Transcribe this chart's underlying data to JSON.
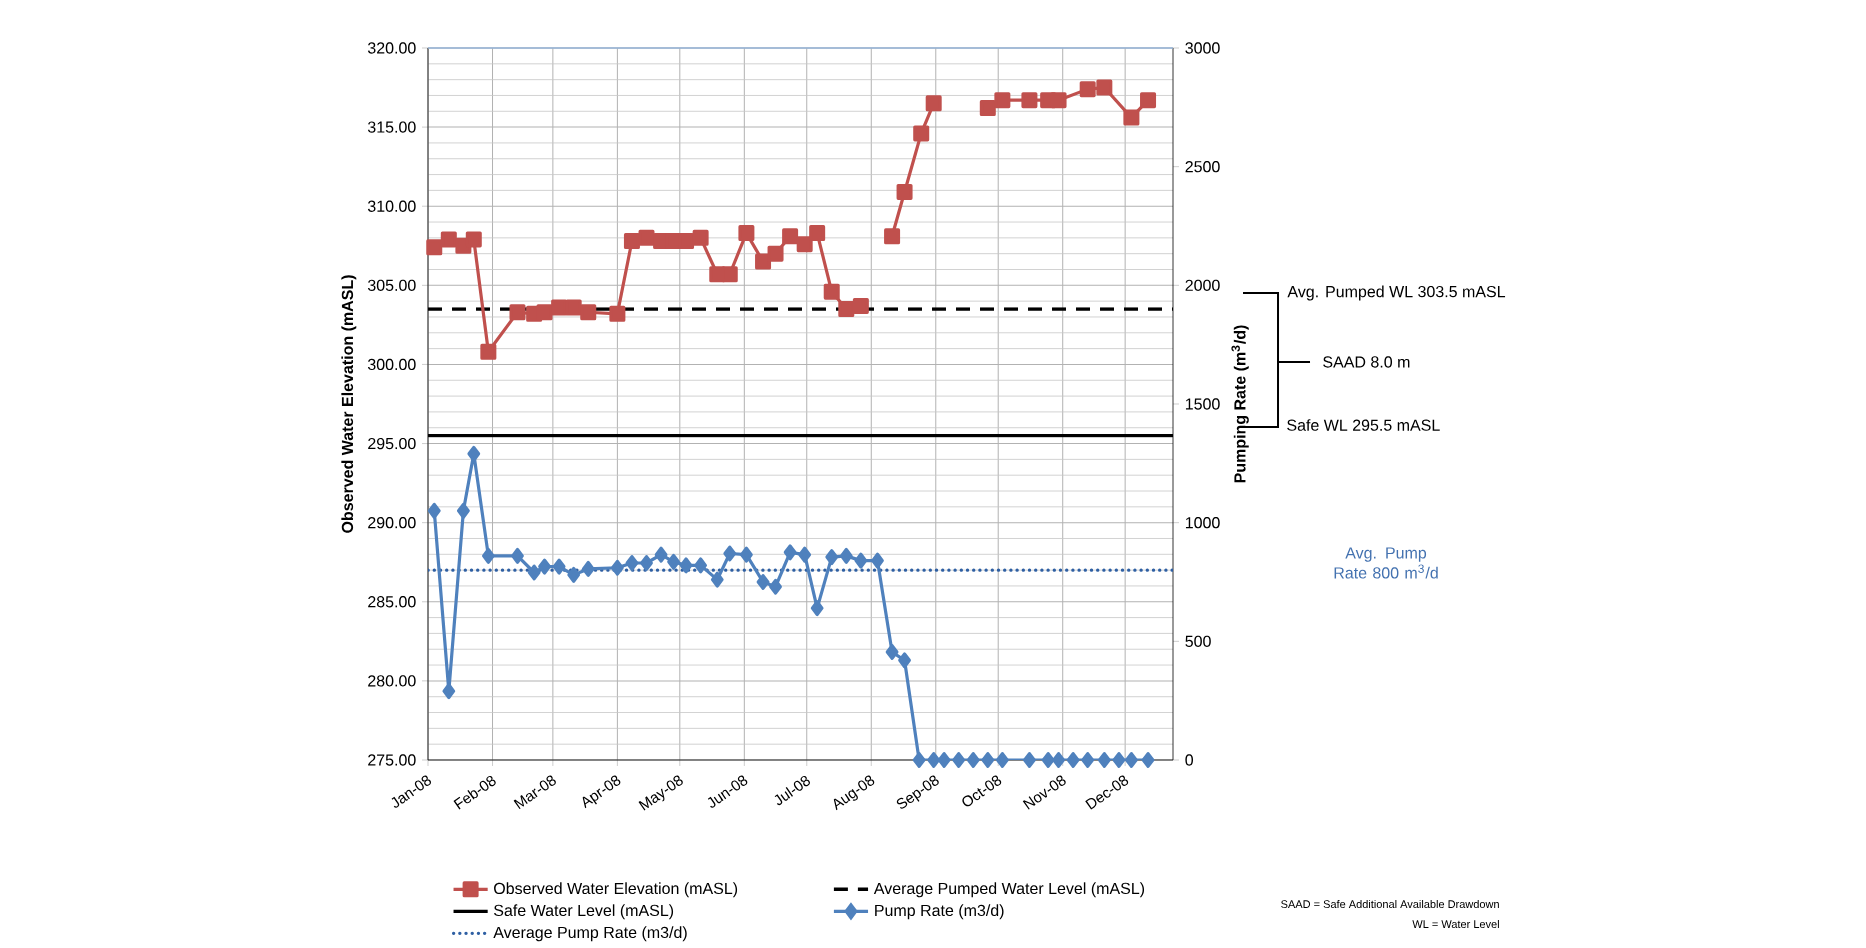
{
  "chart_data": {
    "type": "line",
    "ylabel": "Observed Water Elevation (mASL)",
    "y2label": "Pumping Rate (m$^{3}$/d)",
    "xlim": [
      "2008-01-01",
      "2008-12-24"
    ],
    "xticks": [
      {
        "value": "2008-01-01",
        "label": "Jan-08"
      },
      {
        "value": "2008-02-01",
        "label": "Feb-08"
      },
      {
        "value": "2008-03-01",
        "label": "Mar-08"
      },
      {
        "value": "2008-04-01",
        "label": "Apr-08"
      },
      {
        "value": "2008-05-01",
        "label": "May-08"
      },
      {
        "value": "2008-06-01",
        "label": "Jun-08"
      },
      {
        "value": "2008-07-01",
        "label": "Jul-08"
      },
      {
        "value": "2008-08-01",
        "label": "Aug-08"
      },
      {
        "value": "2008-09-01",
        "label": "Sep-08"
      },
      {
        "value": "2008-10-01",
        "label": "Oct-08"
      },
      {
        "value": "2008-11-01",
        "label": "Nov-08"
      },
      {
        "value": "2008-12-01",
        "label": "Dec-08"
      }
    ],
    "ylim": [
      275,
      320
    ],
    "yticks": [
      {
        "value": 275,
        "label": "275.00"
      },
      {
        "value": 280,
        "label": "280.00"
      },
      {
        "value": 285,
        "label": "285.00"
      },
      {
        "value": 290,
        "label": "290.00"
      },
      {
        "value": 295,
        "label": "295.00"
      },
      {
        "value": 300,
        "label": "300.00"
      },
      {
        "value": 305,
        "label": "305.00"
      },
      {
        "value": 310,
        "label": "310.00"
      },
      {
        "value": 315,
        "label": "315.00"
      },
      {
        "value": 320,
        "label": "320.00"
      }
    ],
    "y2lim": [
      0,
      3000
    ],
    "y2ticks": [
      0,
      500,
      1000,
      1500,
      2000,
      2500,
      3000
    ],
    "grid": true,
    "legend": "bottom",
    "series": [
      {
        "name": "Observed Water Elevation (mASL)",
        "color": "#c0504d",
        "marker": "square",
        "x": [
          "2008-01-04",
          "2008-01-11",
          "2008-01-18",
          "2008-01-23",
          "2008-01-30",
          "2008-02-13",
          "2008-02-21",
          "2008-02-26",
          "2008-03-04",
          "2008-03-11",
          "2008-03-18",
          "2008-04-01",
          "2008-04-08",
          "2008-04-15",
          "2008-04-22",
          "2008-04-28",
          "2008-05-04",
          "2008-05-11",
          "2008-05-19",
          "2008-05-25",
          "2008-06-02",
          "2008-06-10",
          "2008-06-16",
          "2008-06-23",
          "2008-06-30",
          "2008-07-06",
          "2008-07-13",
          "2008-07-20",
          "2008-07-27",
          "2008-08-03",
          "2008-08-11",
          "2008-08-17",
          "2008-08-25",
          "2008-08-31",
          "2008-09-14",
          "2008-09-26",
          "2008-10-03",
          "2008-10-16",
          "2008-10-25",
          "2008-10-30",
          "2008-11-13",
          "2008-11-21",
          "2008-12-04",
          "2008-12-12"
        ],
        "values": [
          307.4,
          307.9,
          307.5,
          307.9,
          300.8,
          303.3,
          303.2,
          303.3,
          303.6,
          303.6,
          303.3,
          303.2,
          307.8,
          308.0,
          307.8,
          307.8,
          307.8,
          308.0,
          305.7,
          305.7,
          308.3,
          306.5,
          307.0,
          308.1,
          307.6,
          308.3,
          304.6,
          303.5,
          303.7,
          null,
          308.1,
          310.9,
          314.6,
          316.5,
          null,
          316.2,
          316.7,
          316.7,
          316.7,
          316.7,
          317.4,
          317.5,
          315.6,
          316.7
        ]
      },
      {
        "name": "Pump Rate (m3/d)",
        "color": "#4f81bd",
        "marker": "diamond",
        "axis": "y2",
        "x": [
          "2008-01-04",
          "2008-01-11",
          "2008-01-18",
          "2008-01-23",
          "2008-01-30",
          "2008-02-13",
          "2008-02-21",
          "2008-02-26",
          "2008-03-04",
          "2008-03-11",
          "2008-03-18",
          "2008-04-01",
          "2008-04-08",
          "2008-04-15",
          "2008-04-22",
          "2008-04-28",
          "2008-05-04",
          "2008-05-11",
          "2008-05-19",
          "2008-05-25",
          "2008-06-02",
          "2008-06-10",
          "2008-06-16",
          "2008-06-23",
          "2008-06-30",
          "2008-07-06",
          "2008-07-13",
          "2008-07-20",
          "2008-07-27",
          "2008-08-04",
          "2008-08-11",
          "2008-08-17",
          "2008-08-24",
          "2008-08-31",
          "2008-09-05",
          "2008-09-12",
          "2008-09-19",
          "2008-09-26",
          "2008-10-03",
          "2008-10-16",
          "2008-10-25",
          "2008-10-30",
          "2008-11-06",
          "2008-11-13",
          "2008-11-21",
          "2008-11-28",
          "2008-12-04",
          "2008-12-12"
        ],
        "values": [
          1050,
          290,
          1050,
          1290,
          860,
          860,
          790,
          815,
          815,
          780,
          805,
          810,
          830,
          830,
          865,
          835,
          820,
          820,
          760,
          870,
          865,
          750,
          730,
          875,
          865,
          640,
          855,
          860,
          840,
          840,
          455,
          420,
          0,
          0,
          0,
          0,
          0,
          0,
          0,
          0,
          0,
          0,
          0,
          0,
          0,
          0,
          0,
          0
        ]
      }
    ],
    "ref_lines": [
      {
        "axis": "y",
        "value": 303.5,
        "label": "Average Pumped Water Level (mASL)",
        "color": "#000000",
        "line_style": "dashed"
      },
      {
        "axis": "y",
        "value": 295.5,
        "label": "Safe Water Level (mASL)",
        "color": "#000000",
        "line_style": "solid"
      },
      {
        "axis": "y2",
        "value": 800,
        "label": "Average Pump Rate (m3/d)",
        "color": "#2e5fa3",
        "line_style": "dotted"
      }
    ],
    "annotations": [
      "Avg. Pumped WL  303.5 mASL",
      "SAAD 8.0 m",
      "Safe WL 295.5 mASL",
      "Avg. Pump Rate 800 m$^{3}$/d",
      "SAAD = Safe Additional Available Drawdown",
      "WL = Water Level"
    ]
  }
}
